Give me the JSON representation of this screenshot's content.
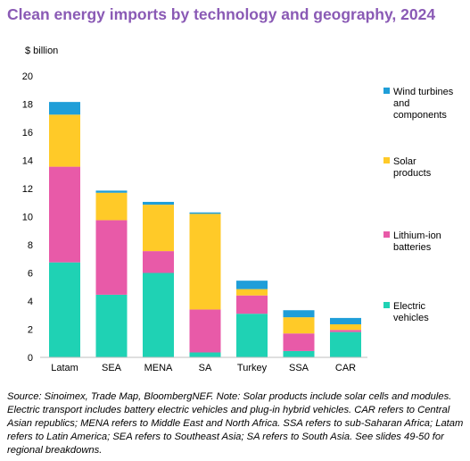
{
  "title": "Clean energy imports by technology and geography, 2024",
  "source_note": "Source: Sinoimex, Trade Map, BloombergNEF. Note: Solar products include solar cells and modules. Electric transport includes battery electric vehicles and plug-in hybrid vehicles. CAR refers to Central Asian republics; MENA refers to Middle East and North Africa. SSA refers to sub-Saharan Africa; Latam refers to Latin America; SEA refers to Southeast Asia; SA refers to South Asia. See slides 49-50 for regional breakdowns.",
  "chart_data": {
    "type": "bar",
    "stacked": true,
    "ylabel": "$ billion",
    "ylim": [
      0,
      20
    ],
    "yticks": [
      0,
      2,
      4,
      6,
      8,
      10,
      12,
      14,
      16,
      18,
      20
    ],
    "grid": false,
    "legend_position": "right",
    "categories": [
      "Latam",
      "SEA",
      "MENA",
      "SA",
      "Turkey",
      "SSA",
      "CAR"
    ],
    "series": [
      {
        "name": "Electric vehicles",
        "color": "#1fd2b4",
        "values": [
          6.75,
          4.45,
          6.0,
          0.35,
          3.1,
          0.45,
          1.8
        ]
      },
      {
        "name": "Lithium-ion batteries",
        "color": "#e85aa8",
        "values": [
          6.8,
          5.3,
          1.55,
          3.05,
          1.3,
          1.25,
          0.15
        ]
      },
      {
        "name": "Solar products",
        "color": "#ffca28",
        "values": [
          3.7,
          1.95,
          3.3,
          6.8,
          0.45,
          1.15,
          0.4
        ]
      },
      {
        "name": "Wind turbines and components",
        "color": "#1f9ed8",
        "values": [
          0.9,
          0.15,
          0.2,
          0.1,
          0.6,
          0.5,
          0.45
        ]
      }
    ],
    "legend": [
      {
        "lines": [
          "Wind turbines",
          "and",
          "components"
        ],
        "color": "#1f9ed8"
      },
      {
        "lines": [
          "Solar",
          "products"
        ],
        "color": "#ffca28"
      },
      {
        "lines": [
          "Lithium-ion",
          "batteries"
        ],
        "color": "#e85aa8"
      },
      {
        "lines": [
          "Electric",
          "vehicles"
        ],
        "color": "#1fd2b4"
      }
    ]
  }
}
